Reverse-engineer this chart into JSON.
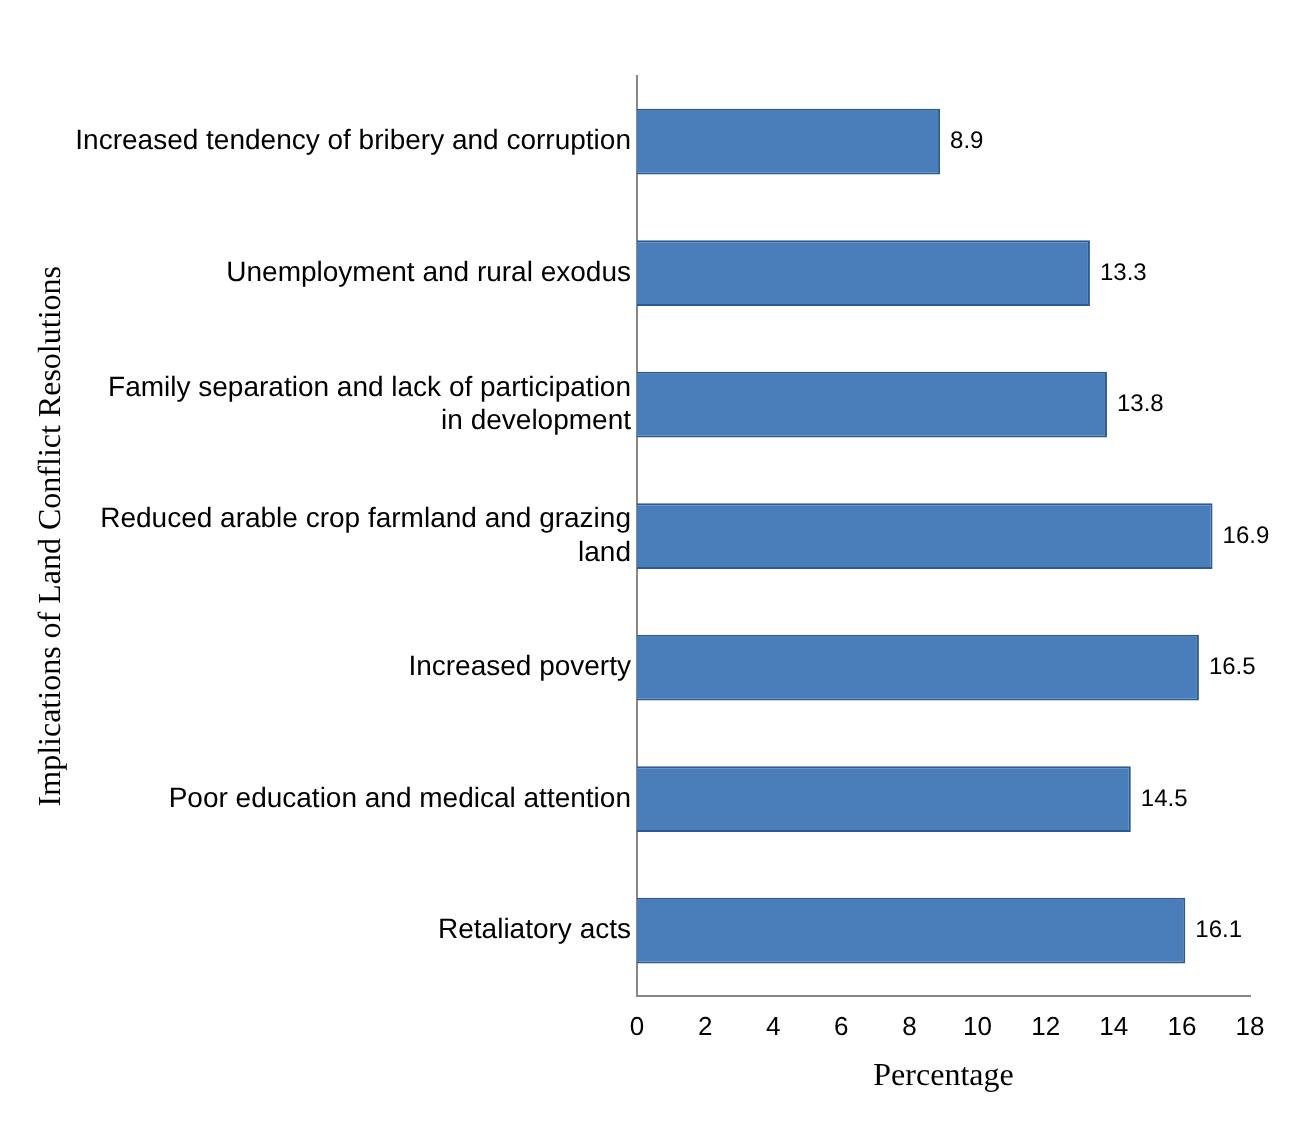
{
  "chart_data": {
    "type": "bar",
    "orientation": "horizontal",
    "ylabel": "Implications of Land Conflict Resolutions",
    "xlabel": "Percentage",
    "categories": [
      "Increased tendency of bribery and corruption",
      "Unemployment and rural exodus",
      "Family separation and lack of participation in development",
      "Reduced arable crop farmland and grazing land",
      "Increased poverty",
      "Poor education and medical attention",
      "Retaliatory acts"
    ],
    "values": [
      8.9,
      13.3,
      13.8,
      16.9,
      16.5,
      14.5,
      16.1
    ],
    "color": "#4a7ebb",
    "xlim": [
      0,
      18
    ],
    "xticks": [
      0,
      2,
      4,
      6,
      8,
      10,
      12,
      14,
      16,
      18
    ],
    "grid": false,
    "legend": false,
    "data_labels": true
  }
}
